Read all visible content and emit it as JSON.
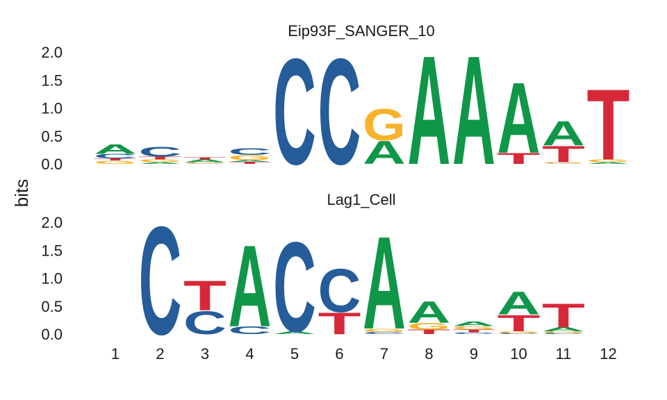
{
  "chart_data": {
    "type": "sequence-logo",
    "ylabel": "bits",
    "ylim": [
      0,
      2
    ],
    "yticks": [
      "0.0",
      "0.5",
      "1.0",
      "1.5",
      "2.0"
    ],
    "positions": [
      "1",
      "2",
      "3",
      "4",
      "5",
      "6",
      "7",
      "8",
      "9",
      "10",
      "11",
      "12"
    ],
    "colors": {
      "A": "#109648",
      "C": "#255C99",
      "G": "#F7B32B",
      "T": "#D62839"
    },
    "motifs": [
      {
        "title": "Eip93F_SANGER_10",
        "offset": 0,
        "columns": [
          [
            {
              "l": "G",
              "v": 0.06
            },
            {
              "l": "T",
              "v": 0.04
            },
            {
              "l": "C",
              "v": 0.08
            },
            {
              "l": "A",
              "v": 0.17
            }
          ],
          [
            {
              "l": "A",
              "v": 0.03
            },
            {
              "l": "G",
              "v": 0.05
            },
            {
              "l": "T",
              "v": 0.05
            },
            {
              "l": "C",
              "v": 0.18
            }
          ],
          [
            {
              "l": "C",
              "v": 0.01
            },
            {
              "l": "G",
              "v": 0.02
            },
            {
              "l": "A",
              "v": 0.05
            },
            {
              "l": "T",
              "v": 0.04
            }
          ],
          [
            {
              "l": "T",
              "v": 0.04
            },
            {
              "l": "A",
              "v": 0.03
            },
            {
              "l": "G",
              "v": 0.09
            },
            {
              "l": "C",
              "v": 0.12
            }
          ],
          [
            {
              "l": "C",
              "v": 1.95
            }
          ],
          [
            {
              "l": "C",
              "v": 1.95
            }
          ],
          [
            {
              "l": "A",
              "v": 0.42
            },
            {
              "l": "G",
              "v": 0.58
            }
          ],
          [
            {
              "l": "A",
              "v": 2.0
            }
          ],
          [
            {
              "l": "A",
              "v": 2.0
            }
          ],
          [
            {
              "l": "T",
              "v": 0.2
            },
            {
              "l": "A",
              "v": 1.3
            }
          ],
          [
            {
              "l": "C",
              "v": 0.01
            },
            {
              "l": "G",
              "v": 0.02
            },
            {
              "l": "T",
              "v": 0.3
            },
            {
              "l": "A",
              "v": 0.45
            }
          ],
          [
            {
              "l": "A",
              "v": 0.03
            },
            {
              "l": "G",
              "v": 0.05
            },
            {
              "l": "T",
              "v": 1.3
            }
          ]
        ]
      },
      {
        "title": "Lag1_Cell",
        "offset": 1,
        "columns": [
          [
            {
              "l": "C",
              "v": 1.99
            }
          ],
          [
            {
              "l": "C",
              "v": 0.42
            },
            {
              "l": "T",
              "v": 0.55
            }
          ],
          [
            {
              "l": "C",
              "v": 0.14
            },
            {
              "l": "A",
              "v": 1.5
            }
          ],
          [
            {
              "l": "A",
              "v": 0.05
            },
            {
              "l": "C",
              "v": 1.65
            }
          ],
          [
            {
              "l": "T",
              "v": 0.4
            },
            {
              "l": "C",
              "v": 0.8
            }
          ],
          [
            {
              "l": "C",
              "v": 0.04
            },
            {
              "l": "G",
              "v": 0.06
            },
            {
              "l": "A",
              "v": 1.7
            }
          ],
          [
            {
              "l": "T",
              "v": 0.08
            },
            {
              "l": "G",
              "v": 0.12
            },
            {
              "l": "A",
              "v": 0.4
            }
          ],
          [
            {
              "l": "C",
              "v": 0.03
            },
            {
              "l": "T",
              "v": 0.05
            },
            {
              "l": "G",
              "v": 0.06
            },
            {
              "l": "A",
              "v": 0.08
            }
          ],
          [
            {
              "l": "C",
              "v": 0.02
            },
            {
              "l": "G",
              "v": 0.03
            },
            {
              "l": "T",
              "v": 0.3
            },
            {
              "l": "A",
              "v": 0.42
            }
          ],
          [
            {
              "l": "C",
              "v": 0.02
            },
            {
              "l": "G",
              "v": 0.03
            },
            {
              "l": "A",
              "v": 0.07
            },
            {
              "l": "T",
              "v": 0.44
            }
          ]
        ]
      }
    ]
  }
}
